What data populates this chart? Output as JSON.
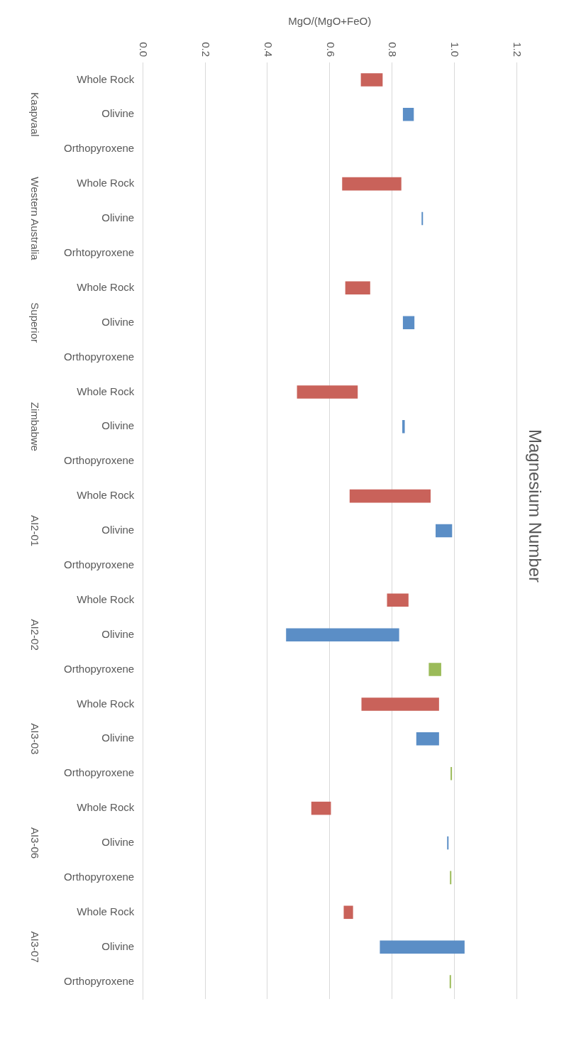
{
  "chart_data": {
    "type": "bar",
    "orientation": "horizontal",
    "title": "Magnesium Number",
    "xlabel": "MgO/(MgO+FeO)",
    "categories": [
      "Whole Rock",
      "Olivine",
      "Orthopyroxene",
      "Whole Rock",
      "Olivine",
      "Orhtopyroxene",
      "Whole Rock",
      "Olivine",
      "Orthopyroxene",
      "Whole Rock",
      "Olivine",
      "Orthopyroxene",
      "Whole Rock",
      "Olivine",
      "Orthopyroxene",
      "Whole Rock",
      "Olivine",
      "Orthopyroxene",
      "Whole Rock",
      "Olivine",
      "Orthopyroxene",
      "Whole Rock",
      "Olivine",
      "Orthopyroxene",
      "Whole Rock",
      "Olivine",
      "Orthopyroxene"
    ],
    "base": [
      0.7,
      0.835,
      null,
      0.64,
      0.895,
      null,
      0.65,
      0.835,
      null,
      0.495,
      0.833,
      null,
      0.664,
      0.94,
      null,
      0.784,
      0.46,
      0.918,
      0.702,
      0.878,
      0.988,
      0.541,
      0.977,
      0.986,
      0.645,
      0.761,
      0.985
    ],
    "values": [
      0.07,
      0.035,
      null,
      0.19,
      0.004,
      null,
      0.08,
      0.037,
      null,
      0.195,
      0.008,
      null,
      0.26,
      0.053,
      null,
      0.069,
      0.363,
      0.04,
      0.249,
      0.073,
      0.004,
      0.063,
      0.004,
      0.004,
      0.03,
      0.272,
      0.004
    ],
    "colors": [
      "#c9625a",
      "#5b8ec6",
      "#9bbb59",
      "#c9625a",
      "#5b8ec6",
      "#9bbb59",
      "#c9625a",
      "#5b8ec6",
      "#9bbb59",
      "#c9625a",
      "#5b8ec6",
      "#9bbb59",
      "#c9625a",
      "#5b8ec6",
      "#9bbb59",
      "#c9625a",
      "#5b8ec6",
      "#9bbb59",
      "#c9625a",
      "#5b8ec6",
      "#9bbb59",
      "#c9625a",
      "#5b8ec6",
      "#9bbb59",
      "#c9625a",
      "#5b8ec6",
      "#9bbb59"
    ],
    "xlim": [
      0,
      1.2
    ],
    "xticks": [
      {
        "value": 0,
        "label": "0.0"
      },
      0.2,
      0.4,
      0.6,
      0.8,
      {
        "value": 1,
        "label": "1.0"
      },
      1.2
    ],
    "grid": "x",
    "legend": false,
    "annotations": [
      "Kaapvaal",
      "Western Australia",
      "Superior",
      "Zimbabwe",
      "AI2-01",
      "AI2-02",
      "AI3-03",
      "AI3-06",
      "AI3-07"
    ]
  }
}
